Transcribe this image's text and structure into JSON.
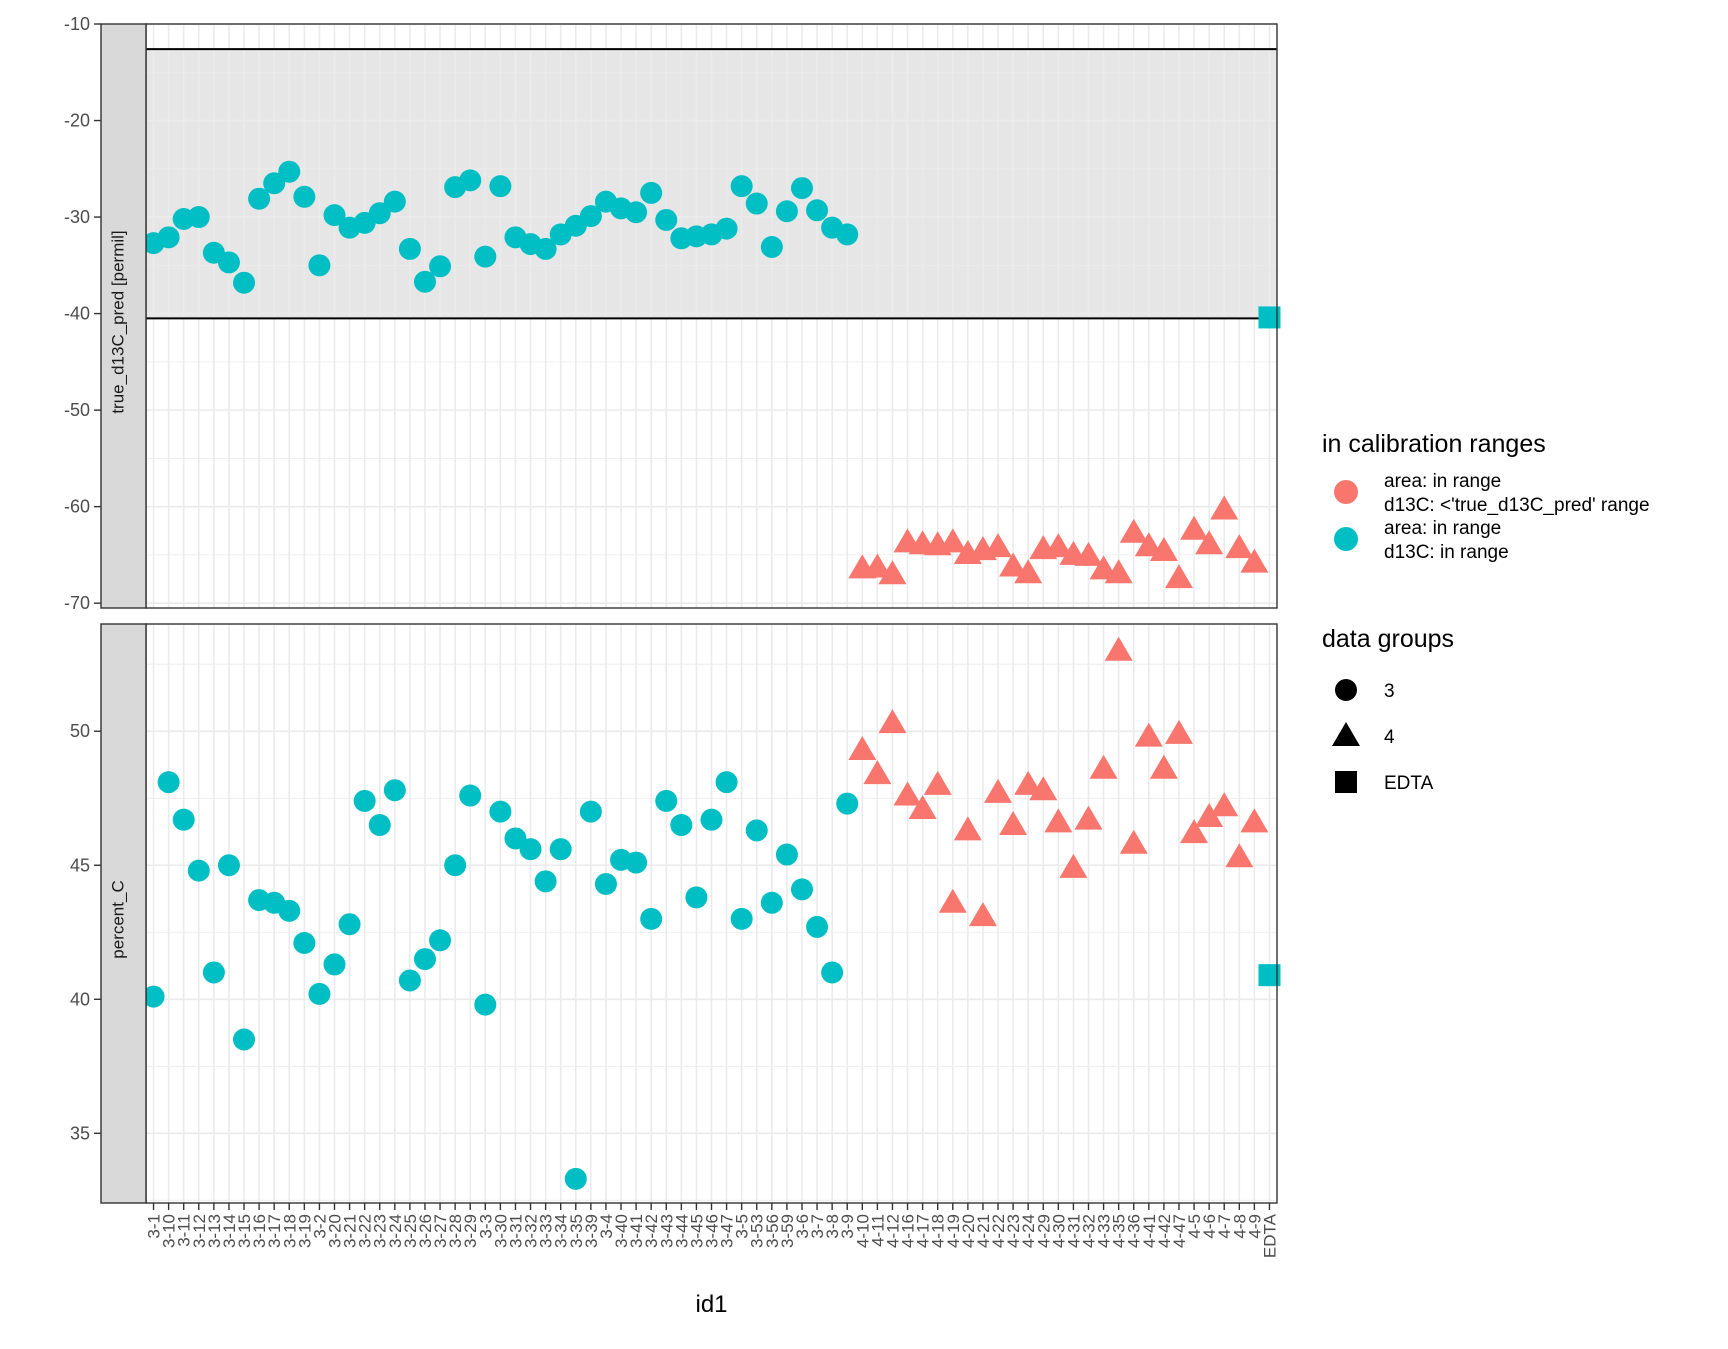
{
  "chart_data": {
    "type": "scatter",
    "xlabel": "id1",
    "categories": [
      "3-1",
      "3-10",
      "3-11",
      "3-12",
      "3-13",
      "3-14",
      "3-15",
      "3-16",
      "3-17",
      "3-18",
      "3-19",
      "3-2",
      "3-20",
      "3-21",
      "3-22",
      "3-23",
      "3-24",
      "3-25",
      "3-26",
      "3-27",
      "3-28",
      "3-29",
      "3-3",
      "3-30",
      "3-31",
      "3-32",
      "3-33",
      "3-34",
      "3-35",
      "3-39",
      "3-4",
      "3-40",
      "3-41",
      "3-42",
      "3-43",
      "3-44",
      "3-45",
      "3-46",
      "3-47",
      "3-5",
      "3-53",
      "3-56",
      "3-59",
      "3-6",
      "3-7",
      "3-8",
      "3-9",
      "4-10",
      "4-11",
      "4-12",
      "4-16",
      "4-17",
      "4-18",
      "4-19",
      "4-20",
      "4-21",
      "4-22",
      "4-23",
      "4-24",
      "4-29",
      "4-30",
      "4-31",
      "4-32",
      "4-33",
      "4-35",
      "4-36",
      "4-41",
      "4-42",
      "4-47",
      "4-5",
      "4-6",
      "4-7",
      "4-8",
      "4-9",
      "EDTA"
    ],
    "facets": [
      {
        "strip_label": "true_d13C_pred [permil]",
        "ylim": [
          -70.5,
          -10
        ],
        "yticks": [
          -10,
          -20,
          -30,
          -40,
          -50,
          -60,
          -70
        ],
        "calibration_range": [
          -40.5,
          -12.6
        ],
        "values": [
          -32.7,
          -32.1,
          -30.2,
          -30.0,
          -33.7,
          -34.7,
          -36.8,
          -28.1,
          -26.5,
          -25.3,
          -27.9,
          -35.0,
          -29.8,
          -31.1,
          -30.6,
          -29.6,
          -28.4,
          -33.3,
          -36.7,
          -35.1,
          -26.9,
          -26.2,
          -34.1,
          -26.8,
          -32.1,
          -32.8,
          -33.3,
          -31.8,
          -30.9,
          -29.9,
          -28.4,
          -29.1,
          -29.5,
          -27.5,
          -30.3,
          -32.2,
          -32.0,
          -31.8,
          -31.2,
          -26.8,
          -28.6,
          -33.1,
          -29.4,
          -27.0,
          -29.3,
          -31.1,
          -31.8,
          -66.4,
          -66.3,
          -67.0,
          -63.7,
          -63.9,
          -64.0,
          -63.7,
          -64.9,
          -64.5,
          -64.2,
          -66.2,
          -66.9,
          -64.4,
          -64.2,
          -65.0,
          -65.1,
          -66.5,
          -66.9,
          -62.7,
          -64.1,
          -64.6,
          -67.4,
          -62.4,
          -63.9,
          -60.3,
          -64.3,
          -65.8,
          -40.4
        ]
      },
      {
        "strip_label": "percent_C",
        "ylim": [
          32.4,
          54.0
        ],
        "yticks": [
          35,
          40,
          45,
          50
        ],
        "values": [
          40.1,
          48.1,
          46.7,
          44.8,
          41.0,
          45.0,
          38.5,
          43.7,
          43.6,
          43.3,
          42.1,
          40.2,
          41.3,
          42.8,
          47.4,
          46.5,
          47.8,
          40.7,
          41.5,
          42.2,
          45.0,
          47.6,
          39.8,
          47.0,
          46.0,
          45.6,
          44.4,
          45.6,
          33.3,
          47.0,
          44.3,
          45.2,
          45.1,
          43.0,
          47.4,
          46.5,
          43.8,
          46.7,
          48.1,
          43.0,
          46.3,
          43.6,
          45.4,
          44.1,
          42.7,
          41.0,
          47.3,
          49.3,
          48.4,
          50.3,
          47.6,
          47.1,
          48.0,
          43.6,
          46.3,
          43.1,
          47.7,
          46.5,
          48.0,
          47.8,
          46.6,
          44.9,
          46.7,
          48.6,
          53.0,
          45.8,
          49.8,
          48.6,
          49.9,
          46.2,
          46.8,
          47.2,
          45.3,
          46.6,
          40.9
        ]
      }
    ],
    "group_index": [
      0,
      0,
      0,
      0,
      0,
      0,
      0,
      0,
      0,
      0,
      0,
      0,
      0,
      0,
      0,
      0,
      0,
      0,
      0,
      0,
      0,
      0,
      0,
      0,
      0,
      0,
      0,
      0,
      0,
      0,
      0,
      0,
      0,
      0,
      0,
      0,
      0,
      0,
      0,
      0,
      0,
      0,
      0,
      0,
      0,
      0,
      0,
      1,
      1,
      1,
      1,
      1,
      1,
      1,
      1,
      1,
      1,
      1,
      1,
      1,
      1,
      1,
      1,
      1,
      1,
      1,
      1,
      1,
      1,
      1,
      1,
      1,
      1,
      1,
      2
    ],
    "color_index": [
      1,
      1,
      1,
      1,
      1,
      1,
      1,
      1,
      1,
      1,
      1,
      1,
      1,
      1,
      1,
      1,
      1,
      1,
      1,
      1,
      1,
      1,
      1,
      1,
      1,
      1,
      1,
      1,
      1,
      1,
      1,
      1,
      1,
      1,
      1,
      1,
      1,
      1,
      1,
      1,
      1,
      1,
      1,
      1,
      1,
      1,
      1,
      0,
      0,
      0,
      0,
      0,
      0,
      0,
      0,
      0,
      0,
      0,
      0,
      0,
      0,
      0,
      0,
      0,
      0,
      0,
      0,
      0,
      0,
      0,
      0,
      0,
      0,
      0,
      1
    ],
    "legend_color": {
      "title": "in calibration ranges",
      "items": [
        {
          "line1": "area: in range",
          "line2": "d13C: <'true_d13C_pred' range",
          "color": "#F8766D"
        },
        {
          "line1": "area: in range",
          "line2": "d13C: in range",
          "color": "#00BFC4"
        }
      ]
    },
    "legend_shape": {
      "title": "data groups",
      "items": [
        {
          "label": "3",
          "shape": "circle"
        },
        {
          "label": "4",
          "shape": "triangle"
        },
        {
          "label": "EDTA",
          "shape": "square"
        }
      ]
    },
    "grid": true,
    "legend_position": "right"
  }
}
